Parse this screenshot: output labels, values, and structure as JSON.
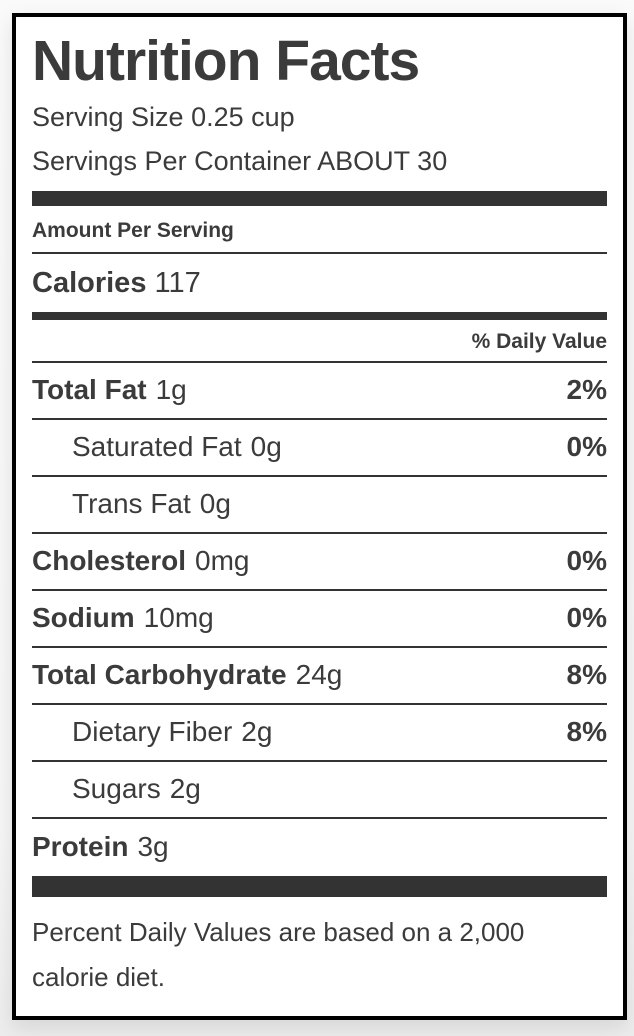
{
  "label": {
    "title": "Nutrition Facts",
    "serving_size": "Serving Size 0.25 cup",
    "servings_per_container": "Servings Per Container ABOUT 30",
    "amount_per_serving": "Amount Per Serving",
    "calories_label": "Calories",
    "calories_value": "117",
    "daily_value_header": "% Daily Value",
    "rows": [
      {
        "name": "Total Fat",
        "amount": "1g",
        "dv": "2%"
      },
      {
        "name": "Saturated Fat",
        "amount": "0g",
        "dv": "0%"
      },
      {
        "name": "Trans Fat",
        "amount": "0g",
        "dv": ""
      },
      {
        "name": "Cholesterol",
        "amount": "0mg",
        "dv": "0%"
      },
      {
        "name": "Sodium",
        "amount": "10mg",
        "dv": "0%"
      },
      {
        "name": "Total Carbohydrate",
        "amount": "24g",
        "dv": "8%"
      },
      {
        "name": "Dietary Fiber",
        "amount": "2g",
        "dv": "8%"
      },
      {
        "name": "Sugars",
        "amount": "2g",
        "dv": ""
      },
      {
        "name": "Protein",
        "amount": "3g",
        "dv": ""
      }
    ],
    "footnote": "Percent Daily Values are based on a 2,000 calorie diet.",
    "colors": {
      "text": "#3b3b3b",
      "bar": "#333333",
      "border": "#000000",
      "background": "#ffffff",
      "page_background": "#f6f6f7"
    }
  }
}
